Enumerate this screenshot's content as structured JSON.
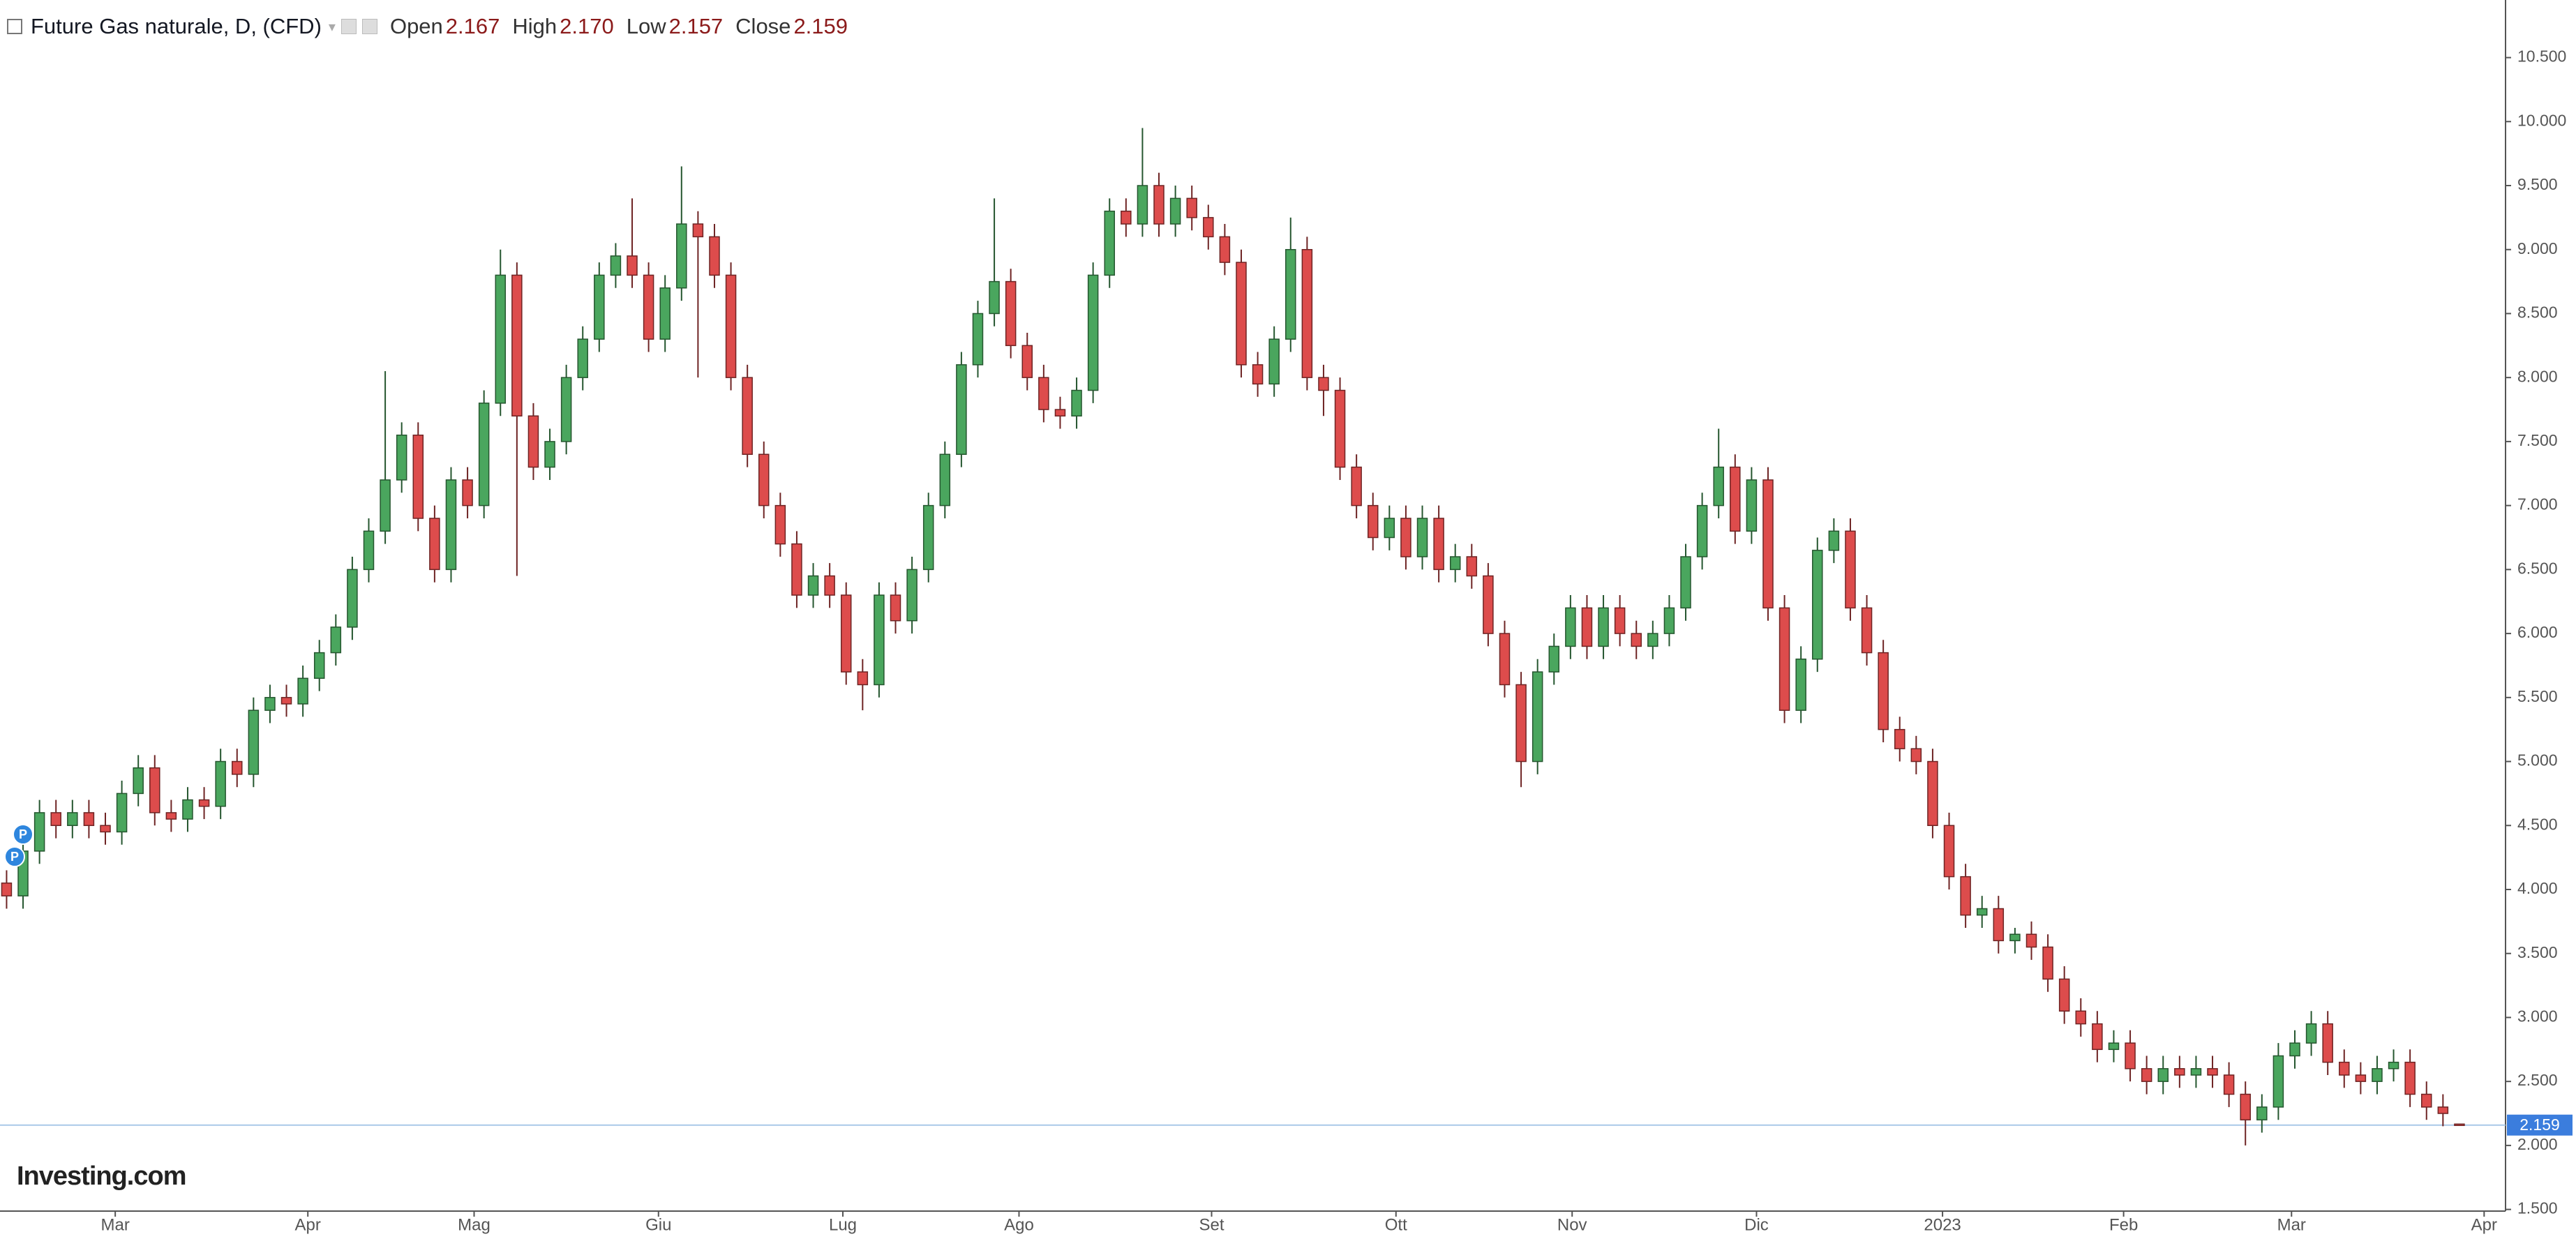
{
  "chart_data": {
    "type": "candlestick",
    "header": {
      "title": "Future Gas naturale, D, (CFD)",
      "open_label": "Open",
      "open": "2.167",
      "high_label": "High",
      "high": "2.170",
      "low_label": "Low",
      "low": "2.157",
      "close_label": "Close",
      "close": "2.159"
    },
    "logo": "Investing.com",
    "markers": [
      "P",
      "P"
    ],
    "up_color": "#4aa65e",
    "down_color": "#dd4c4c",
    "categories": [
      null,
      null,
      null,
      null,
      null,
      null,
      null,
      null,
      null,
      null,
      null,
      null,
      null,
      null,
      null,
      null,
      null,
      null,
      null,
      null,
      null,
      null,
      null,
      null,
      null,
      null,
      null,
      null,
      null,
      null,
      null,
      null,
      null,
      null,
      null,
      null,
      null,
      null,
      null,
      null,
      null,
      null,
      null,
      null,
      null,
      null,
      null,
      null,
      null,
      null,
      null,
      null,
      null,
      null,
      null,
      null,
      null,
      null,
      null,
      null,
      null,
      null,
      null,
      null,
      null,
      null,
      null,
      null,
      null,
      null,
      null,
      null,
      null,
      null,
      null,
      null,
      null,
      null,
      null,
      null,
      null,
      null,
      null,
      null,
      null,
      null,
      null,
      null,
      null,
      null,
      null,
      null,
      null,
      null,
      null,
      null,
      null,
      null,
      null,
      null,
      null,
      null,
      null,
      null,
      null,
      null,
      null,
      null,
      null,
      null,
      null,
      null,
      null,
      null,
      null,
      null,
      null,
      null,
      null,
      null,
      null,
      null,
      null,
      null,
      null,
      null,
      null,
      null,
      null,
      null,
      null,
      null,
      null,
      null,
      null,
      null,
      null,
      null,
      null,
      null,
      null,
      null,
      null,
      null,
      null,
      null,
      null,
      null,
      null,
      null
    ],
    "open": [
      4.05,
      3.95,
      4.3,
      4.6,
      4.5,
      4.6,
      4.5,
      4.45,
      4.75,
      4.95,
      4.6,
      4.55,
      4.7,
      4.65,
      5.0,
      4.9,
      5.4,
      5.5,
      5.45,
      5.65,
      5.85,
      6.05,
      6.5,
      6.8,
      7.2,
      7.55,
      6.9,
      6.5,
      7.2,
      7.0,
      7.8,
      8.8,
      7.7,
      7.3,
      7.5,
      8.0,
      8.3,
      8.8,
      8.95,
      8.8,
      8.3,
      8.7,
      9.2,
      9.1,
      8.8,
      8.0,
      7.4,
      7.0,
      6.7,
      6.3,
      6.45,
      6.3,
      5.7,
      5.6,
      6.3,
      6.1,
      6.5,
      7.0,
      7.4,
      8.1,
      8.5,
      8.75,
      8.25,
      8.0,
      7.75,
      7.7,
      7.9,
      8.8,
      9.3,
      9.2,
      9.5,
      9.2,
      9.4,
      9.25,
      9.1,
      8.9,
      8.1,
      7.95,
      8.3,
      9.0,
      8.0,
      7.9,
      7.3,
      7.0,
      6.75,
      6.9,
      6.6,
      6.9,
      6.5,
      6.6,
      6.45,
      6.0,
      5.6,
      5.0,
      5.7,
      5.9,
      6.2,
      5.9,
      6.2,
      6.0,
      5.9,
      6.0,
      6.2,
      6.6,
      7.0,
      7.3,
      6.8,
      7.2,
      6.2,
      5.4,
      5.8,
      6.65,
      6.8,
      6.2,
      5.85,
      5.25,
      5.1,
      5.0,
      4.5,
      4.1,
      3.8,
      3.85,
      3.6,
      3.65,
      3.55,
      3.3,
      3.05,
      2.95,
      2.75,
      2.8,
      2.6,
      2.5,
      2.6,
      2.55,
      2.6,
      2.55,
      2.4,
      2.2,
      2.3,
      2.7,
      2.8,
      2.95,
      2.65,
      2.55,
      2.5,
      2.6,
      2.65,
      2.4,
      2.3,
      2.167
    ],
    "high": [
      4.15,
      4.4,
      4.7,
      4.7,
      4.7,
      4.7,
      4.6,
      4.85,
      5.05,
      5.05,
      4.7,
      4.8,
      4.8,
      5.1,
      5.1,
      5.5,
      5.6,
      5.6,
      5.75,
      5.95,
      6.15,
      6.6,
      6.9,
      8.05,
      7.65,
      7.65,
      7.0,
      7.3,
      7.3,
      7.9,
      9.0,
      8.9,
      7.8,
      7.6,
      8.1,
      8.4,
      8.9,
      9.05,
      9.4,
      8.9,
      8.8,
      9.65,
      9.3,
      9.2,
      8.9,
      8.1,
      7.5,
      7.1,
      6.8,
      6.55,
      6.55,
      6.4,
      5.8,
      6.4,
      6.4,
      6.6,
      7.1,
      7.5,
      8.2,
      8.6,
      9.4,
      8.85,
      8.35,
      8.1,
      7.85,
      8.0,
      8.9,
      9.4,
      9.4,
      9.95,
      9.6,
      9.5,
      9.5,
      9.35,
      9.2,
      9.0,
      8.2,
      8.4,
      9.25,
      9.1,
      8.1,
      8.0,
      7.4,
      7.1,
      7.0,
      7.0,
      7.0,
      7.0,
      6.7,
      6.7,
      6.55,
      6.1,
      5.7,
      5.8,
      6.0,
      6.3,
      6.3,
      6.3,
      6.3,
      6.1,
      6.1,
      6.3,
      6.7,
      7.1,
      7.6,
      7.4,
      7.3,
      7.3,
      6.3,
      5.9,
      6.75,
      6.9,
      6.9,
      6.3,
      5.95,
      5.35,
      5.2,
      5.1,
      4.6,
      4.2,
      3.95,
      3.95,
      3.7,
      3.75,
      3.65,
      3.4,
      3.15,
      3.05,
      2.9,
      2.9,
      2.7,
      2.7,
      2.7,
      2.7,
      2.7,
      2.65,
      2.5,
      2.4,
      2.8,
      2.9,
      3.05,
      3.05,
      2.75,
      2.65,
      2.7,
      2.75,
      2.75,
      2.5,
      2.4,
      2.17
    ],
    "low": [
      3.85,
      3.85,
      4.2,
      4.4,
      4.4,
      4.4,
      4.35,
      4.35,
      4.65,
      4.5,
      4.45,
      4.45,
      4.55,
      4.55,
      4.8,
      4.8,
      5.3,
      5.35,
      5.35,
      5.55,
      5.75,
      5.95,
      6.4,
      6.7,
      7.1,
      6.8,
      6.4,
      6.4,
      6.9,
      6.9,
      7.7,
      6.45,
      7.2,
      7.2,
      7.4,
      7.9,
      8.2,
      8.7,
      8.7,
      8.2,
      8.2,
      8.6,
      8.0,
      8.7,
      7.9,
      7.3,
      6.9,
      6.6,
      6.2,
      6.2,
      6.2,
      5.6,
      5.4,
      5.5,
      6.0,
      6.0,
      6.4,
      6.9,
      7.3,
      8.0,
      8.4,
      8.15,
      7.9,
      7.65,
      7.6,
      7.6,
      7.8,
      8.7,
      9.1,
      9.1,
      9.1,
      9.1,
      9.15,
      9.0,
      8.8,
      8.0,
      7.85,
      7.85,
      8.2,
      7.9,
      7.7,
      7.2,
      6.9,
      6.65,
      6.65,
      6.5,
      6.5,
      6.4,
      6.4,
      6.35,
      5.9,
      5.5,
      4.8,
      4.9,
      5.6,
      5.8,
      5.8,
      5.8,
      5.9,
      5.8,
      5.8,
      5.9,
      6.1,
      6.5,
      6.9,
      6.7,
      6.7,
      6.1,
      5.3,
      5.3,
      5.7,
      6.55,
      6.1,
      5.75,
      5.15,
      5.0,
      4.9,
      4.4,
      4.0,
      3.7,
      3.7,
      3.5,
      3.5,
      3.45,
      3.2,
      2.95,
      2.85,
      2.65,
      2.65,
      2.5,
      2.4,
      2.4,
      2.45,
      2.45,
      2.45,
      2.3,
      2.0,
      2.1,
      2.2,
      2.6,
      2.7,
      2.55,
      2.45,
      2.4,
      2.4,
      2.5,
      2.3,
      2.2,
      2.15,
      2.157
    ],
    "close": [
      3.95,
      4.3,
      4.6,
      4.5,
      4.6,
      4.5,
      4.45,
      4.75,
      4.95,
      4.6,
      4.55,
      4.7,
      4.65,
      5.0,
      4.9,
      5.4,
      5.5,
      5.45,
      5.65,
      5.85,
      6.05,
      6.5,
      6.8,
      7.2,
      7.55,
      6.9,
      6.5,
      7.2,
      7.0,
      7.8,
      8.8,
      7.7,
      7.3,
      7.5,
      8.0,
      8.3,
      8.8,
      8.95,
      8.8,
      8.3,
      8.7,
      9.2,
      9.1,
      8.8,
      8.0,
      7.4,
      7.0,
      6.7,
      6.3,
      6.45,
      6.3,
      5.7,
      5.6,
      6.3,
      6.1,
      6.5,
      7.0,
      7.4,
      8.1,
      8.5,
      8.75,
      8.25,
      8.0,
      7.75,
      7.7,
      7.9,
      8.8,
      9.3,
      9.2,
      9.5,
      9.2,
      9.4,
      9.25,
      9.1,
      8.9,
      8.1,
      7.95,
      8.3,
      9.0,
      8.0,
      7.9,
      7.3,
      7.0,
      6.75,
      6.9,
      6.6,
      6.9,
      6.5,
      6.6,
      6.45,
      6.0,
      5.6,
      5.0,
      5.7,
      5.9,
      6.2,
      5.9,
      6.2,
      6.0,
      5.9,
      6.0,
      6.2,
      6.6,
      7.0,
      7.3,
      6.8,
      7.2,
      6.2,
      5.4,
      5.8,
      6.65,
      6.8,
      6.2,
      5.85,
      5.25,
      5.1,
      5.0,
      4.5,
      4.1,
      3.8,
      3.85,
      3.6,
      3.65,
      3.55,
      3.3,
      3.05,
      2.95,
      2.75,
      2.8,
      2.6,
      2.5,
      2.6,
      2.55,
      2.6,
      2.55,
      2.4,
      2.2,
      2.3,
      2.7,
      2.8,
      2.95,
      2.65,
      2.55,
      2.5,
      2.6,
      2.65,
      2.4,
      2.3,
      2.25,
      2.159
    ],
    "xlim": [
      -0.4,
      151.8
    ],
    "xticks": [
      {
        "value": 6.6,
        "label": "Mar"
      },
      {
        "value": 18.3,
        "label": "Apr"
      },
      {
        "value": 28.4,
        "label": "Mag"
      },
      {
        "value": 39.6,
        "label": "Giu"
      },
      {
        "value": 50.8,
        "label": "Lug"
      },
      {
        "value": 61.5,
        "label": "Ago"
      },
      {
        "value": 73.2,
        "label": "Set"
      },
      {
        "value": 84.4,
        "label": "Ott"
      },
      {
        "value": 95.1,
        "label": "Nov"
      },
      {
        "value": 106.3,
        "label": "Dic"
      },
      {
        "value": 117.6,
        "label": "2023"
      },
      {
        "value": 128.6,
        "label": "Feb"
      },
      {
        "value": 138.8,
        "label": "Mar"
      },
      {
        "value": 150.5,
        "label": "Apr"
      }
    ],
    "ylim": [
      1.487,
      10.95
    ],
    "yticks": [
      {
        "value": 1.5,
        "label": "1.500"
      },
      {
        "value": 2,
        "label": "2.000"
      },
      {
        "value": 2.5,
        "label": "2.500"
      },
      {
        "value": 3,
        "label": "3.000"
      },
      {
        "value": 3.5,
        "label": "3.500"
      },
      {
        "value": 4,
        "label": "4.000"
      },
      {
        "value": 4.5,
        "label": "4.500"
      },
      {
        "value": 5,
        "label": "5.000"
      },
      {
        "value": 5.5,
        "label": "5.500"
      },
      {
        "value": 6,
        "label": "6.000"
      },
      {
        "value": 6.5,
        "label": "6.500"
      },
      {
        "value": 7,
        "label": "7.000"
      },
      {
        "value": 7.5,
        "label": "7.500"
      },
      {
        "value": 8,
        "label": "8.000"
      },
      {
        "value": 8.5,
        "label": "8.500"
      },
      {
        "value": 9,
        "label": "9.000"
      },
      {
        "value": 9.5,
        "label": "9.500"
      },
      {
        "value": 10,
        "label": "10.000"
      },
      {
        "value": 10.5,
        "label": "10.500"
      }
    ],
    "grid": false
  }
}
